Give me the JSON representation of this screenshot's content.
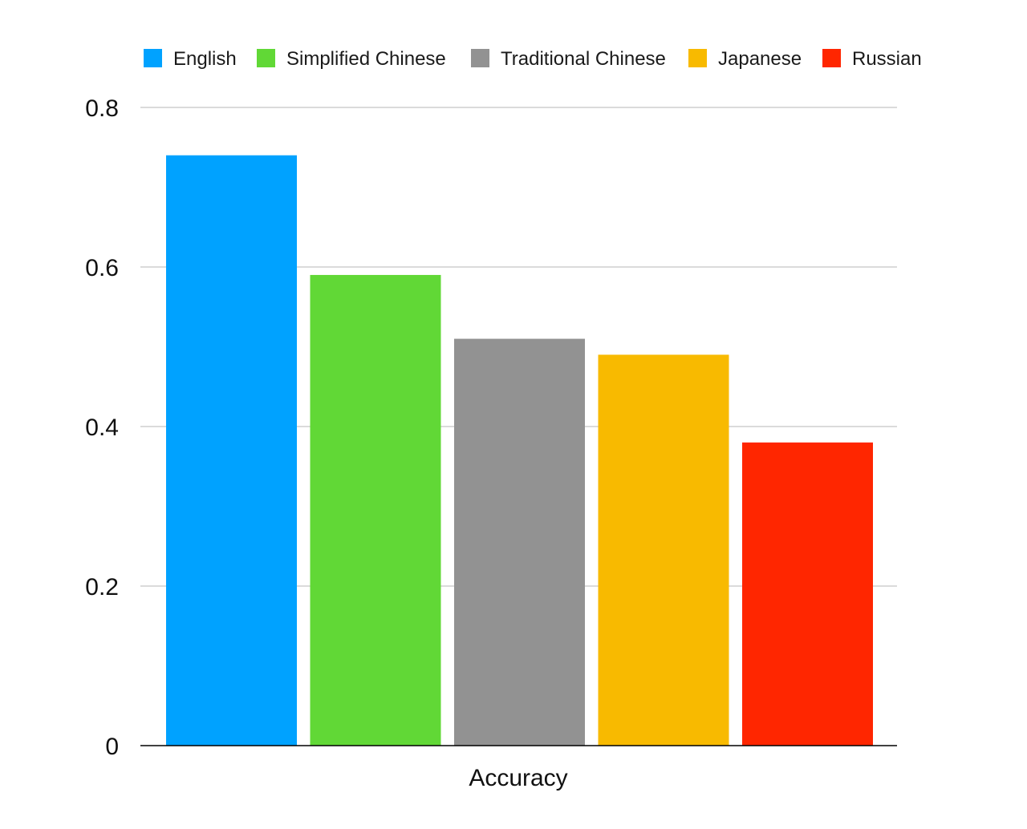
{
  "chart_data": {
    "type": "bar",
    "categories": [
      "Accuracy"
    ],
    "series": [
      {
        "name": "English",
        "values": [
          0.74
        ],
        "color": "#00A2FF"
      },
      {
        "name": "Simplified Chinese",
        "values": [
          0.59
        ],
        "color": "#61D836"
      },
      {
        "name": "Traditional Chinese",
        "values": [
          0.51
        ],
        "color": "#929292"
      },
      {
        "name": "Japanese",
        "values": [
          0.49
        ],
        "color": "#F8BA00"
      },
      {
        "name": "Russian",
        "values": [
          0.38
        ],
        "color": "#FF2600"
      }
    ],
    "yticks": [
      "0",
      "0.2",
      "0.4",
      "0.6",
      "0.8"
    ],
    "ylim": [
      0,
      0.8
    ],
    "grid": true,
    "legend_position": "top"
  }
}
